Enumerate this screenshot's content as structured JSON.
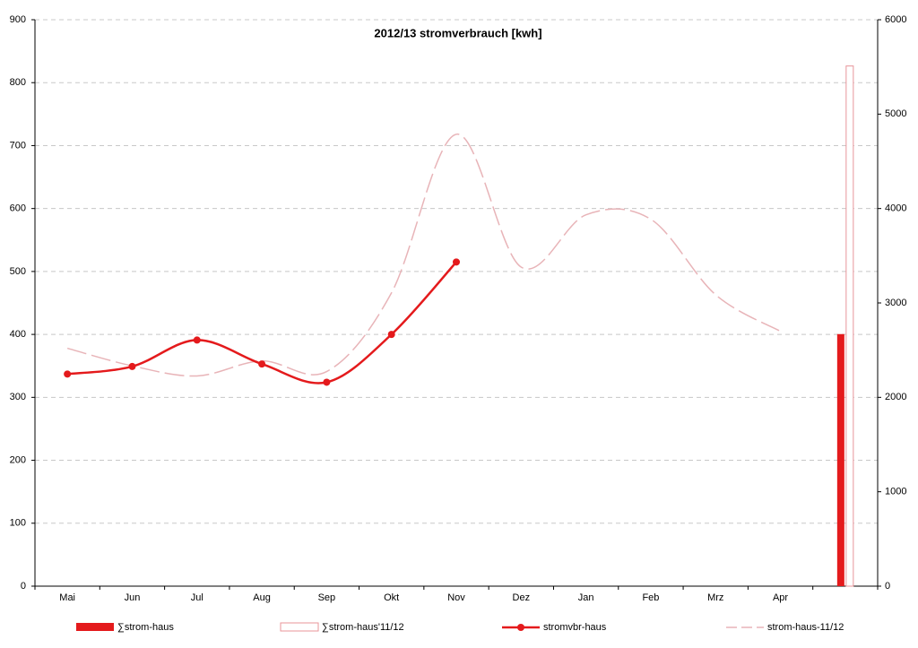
{
  "chart_data": {
    "type": "combo",
    "title": "2012/13 stromverbrauch [kwh]",
    "categories": [
      "Mai",
      "Jun",
      "Jul",
      "Aug",
      "Sep",
      "Okt",
      "Nov",
      "Dez",
      "Jan",
      "Feb",
      "Mrz",
      "Apr",
      null
    ],
    "ylim": [
      0,
      900
    ],
    "yticks": [
      0,
      100,
      200,
      300,
      400,
      500,
      600,
      700,
      800,
      900
    ],
    "y2lim": [
      0,
      6000
    ],
    "y2ticks": [
      0,
      1000,
      2000,
      3000,
      4000,
      5000,
      6000
    ],
    "grid": true,
    "series": [
      {
        "name": "∑strom-haus",
        "type": "bar",
        "style": "filled",
        "axis": "y2",
        "color": "#e41a1c",
        "values": [
          null,
          null,
          null,
          null,
          null,
          null,
          null,
          null,
          null,
          null,
          null,
          null,
          2670
        ]
      },
      {
        "name": "∑strom-haus'11/12",
        "type": "bar",
        "style": "outline",
        "axis": "y2",
        "color": "#e8959a",
        "values": [
          null,
          null,
          null,
          null,
          null,
          null,
          null,
          null,
          null,
          null,
          null,
          null,
          5510
        ]
      },
      {
        "name": "stromvbr-haus",
        "type": "line",
        "style": "solid",
        "color": "#e41a1c",
        "values": [
          337,
          349,
          391,
          353,
          324,
          400,
          515,
          null,
          null,
          null,
          null,
          null,
          null
        ]
      },
      {
        "name": "strom-haus-11/12",
        "type": "line",
        "style": "dashed",
        "color": "#e8b4b8",
        "values": [
          378,
          350,
          334,
          358,
          341,
          466,
          718,
          507,
          590,
          583,
          463,
          405,
          null
        ]
      }
    ]
  }
}
